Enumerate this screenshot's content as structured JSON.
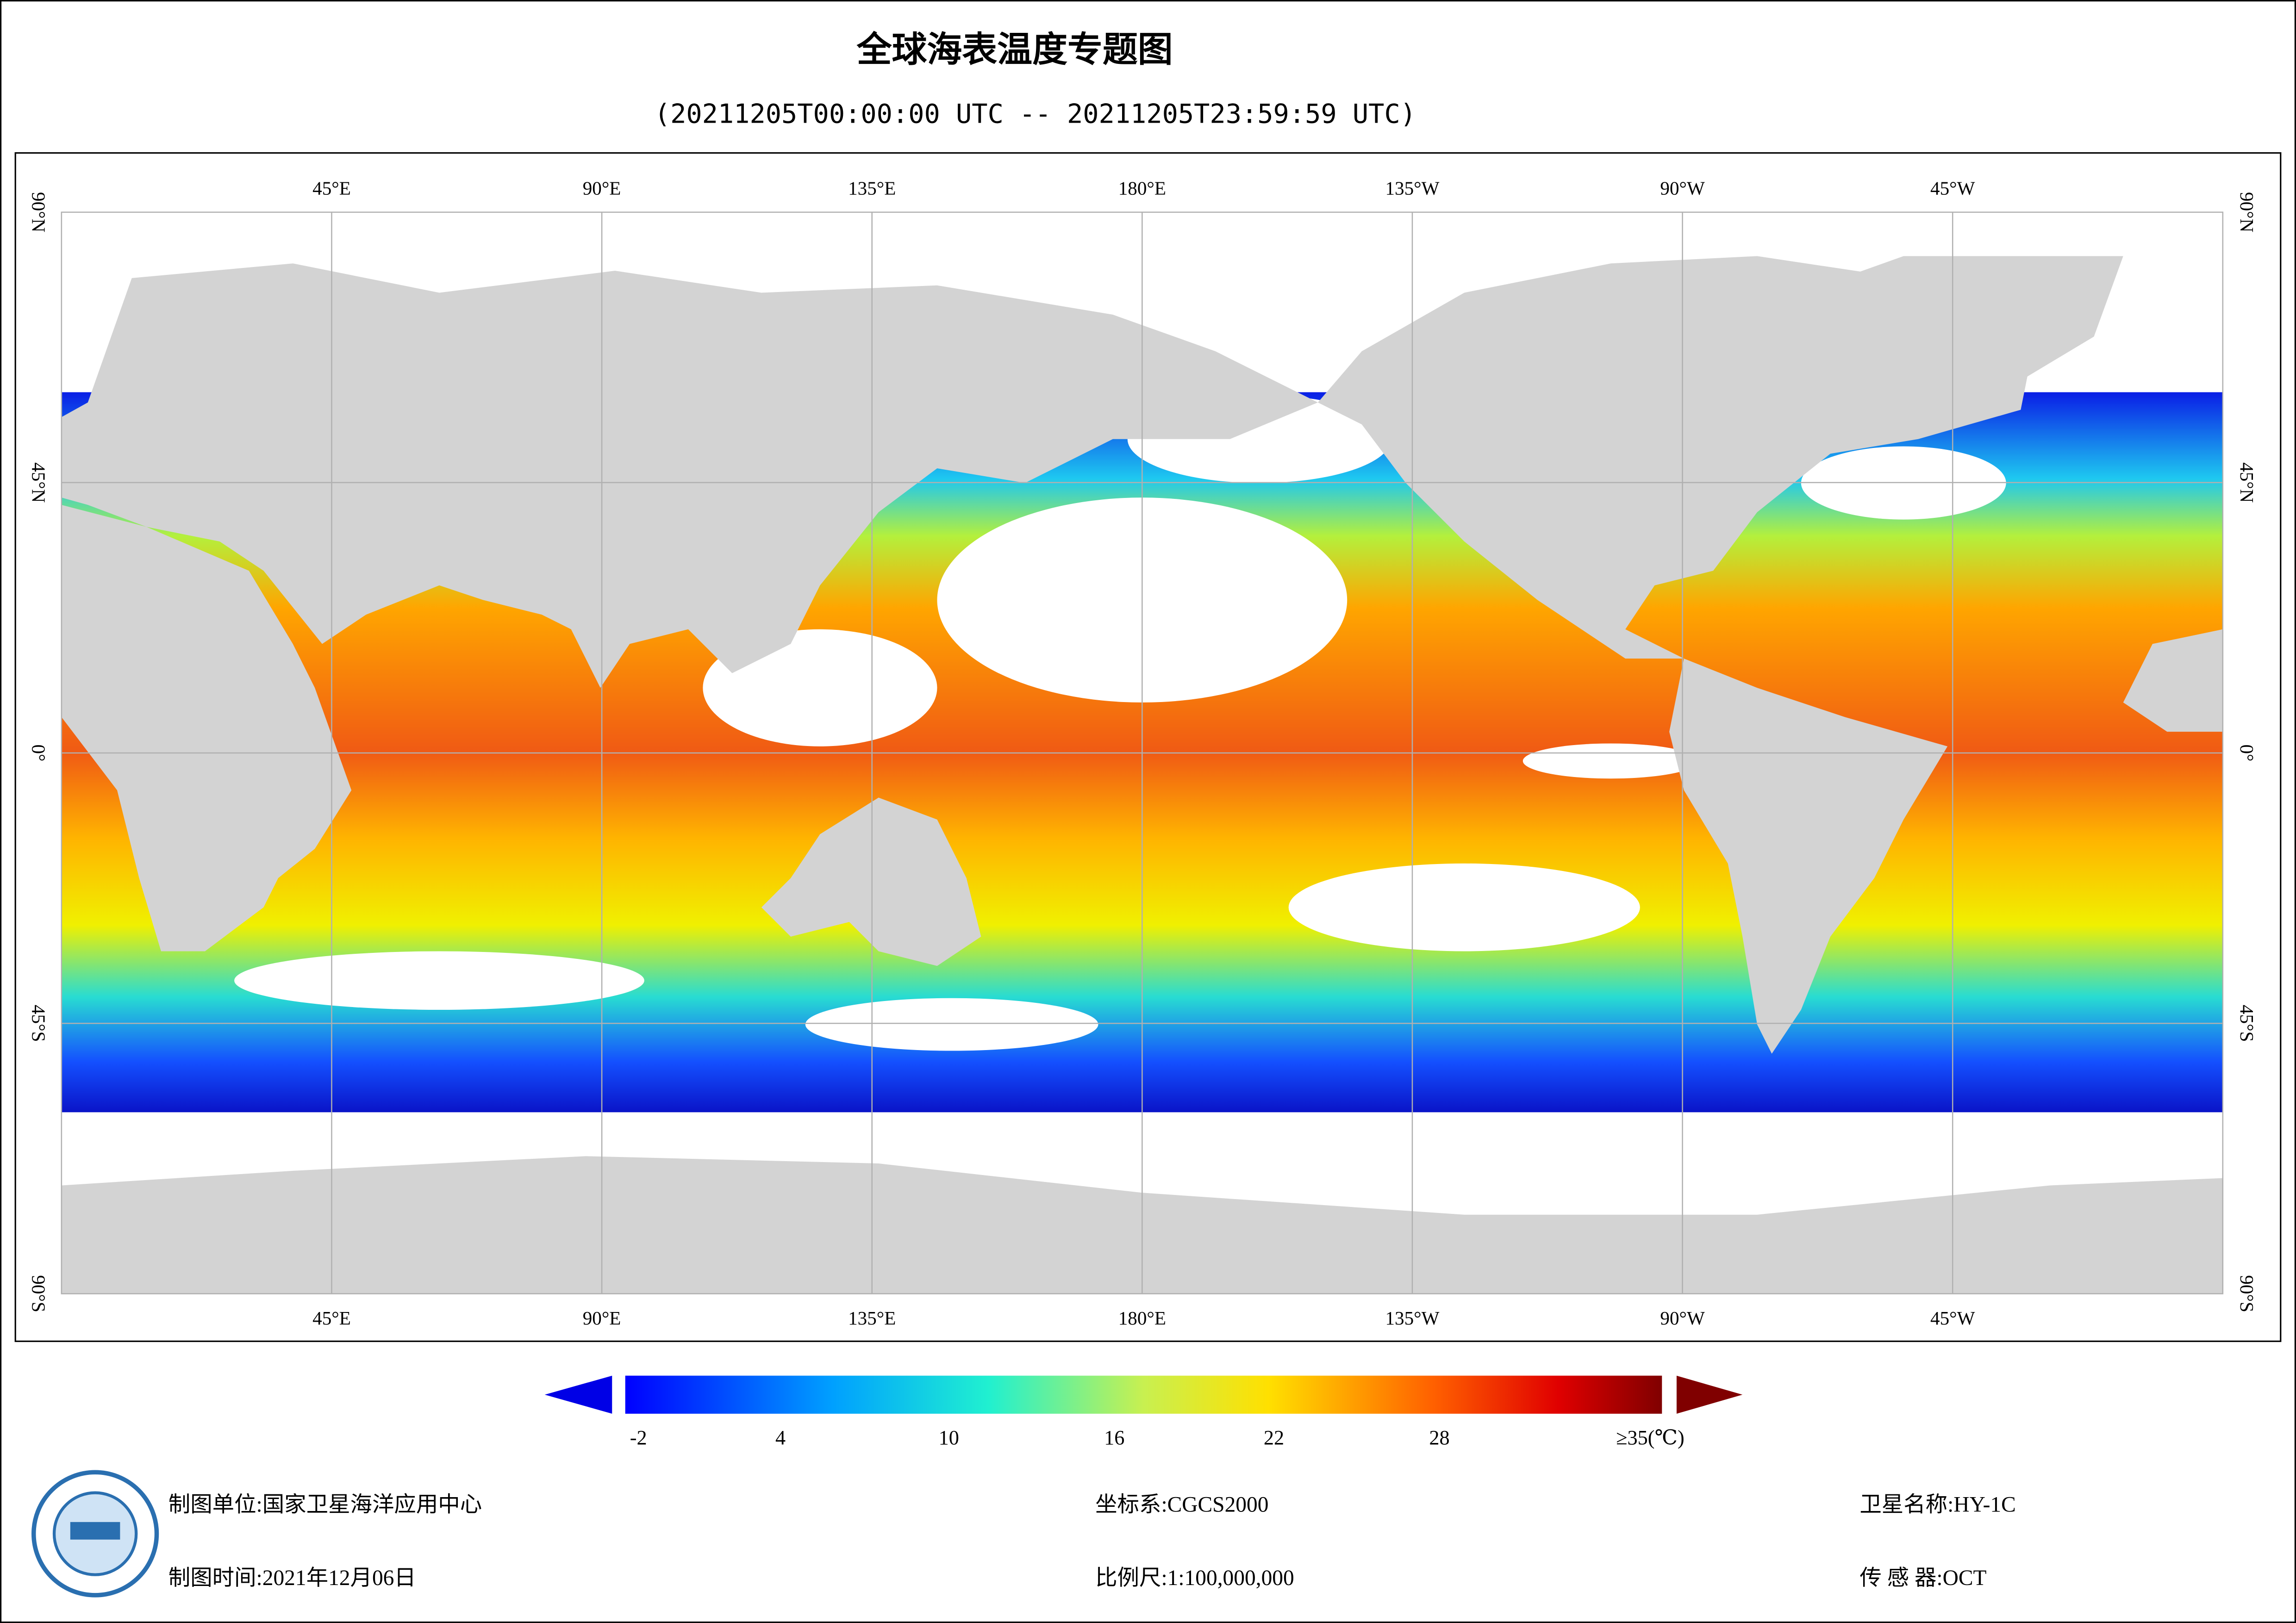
{
  "header": {
    "title": "全球海表温度专题图",
    "subtitle": "(20211205T00:00:00 UTC -- 20211205T23:59:59 UTC)"
  },
  "map": {
    "longitude_labels": [
      "45°E",
      "90°E",
      "135°E",
      "180°E",
      "135°W",
      "90°W",
      "45°W"
    ],
    "latitude_labels": [
      "90°N",
      "45°N",
      "0°",
      "45°S",
      "90°S"
    ]
  },
  "colorbar": {
    "tick_labels": [
      "-2",
      "4",
      "10",
      "16",
      "22",
      "28",
      "≥35(℃)"
    ]
  },
  "footer": {
    "unit": "制图单位:国家卫星海洋应用中心",
    "date": "制图时间:2021年12月06日",
    "crs": "坐标系:CGCS2000",
    "scale": "比例尺:1:100,000,000",
    "satellite": "卫星名称:HY-1C",
    "sensor": "传 感 器:OCT"
  }
}
